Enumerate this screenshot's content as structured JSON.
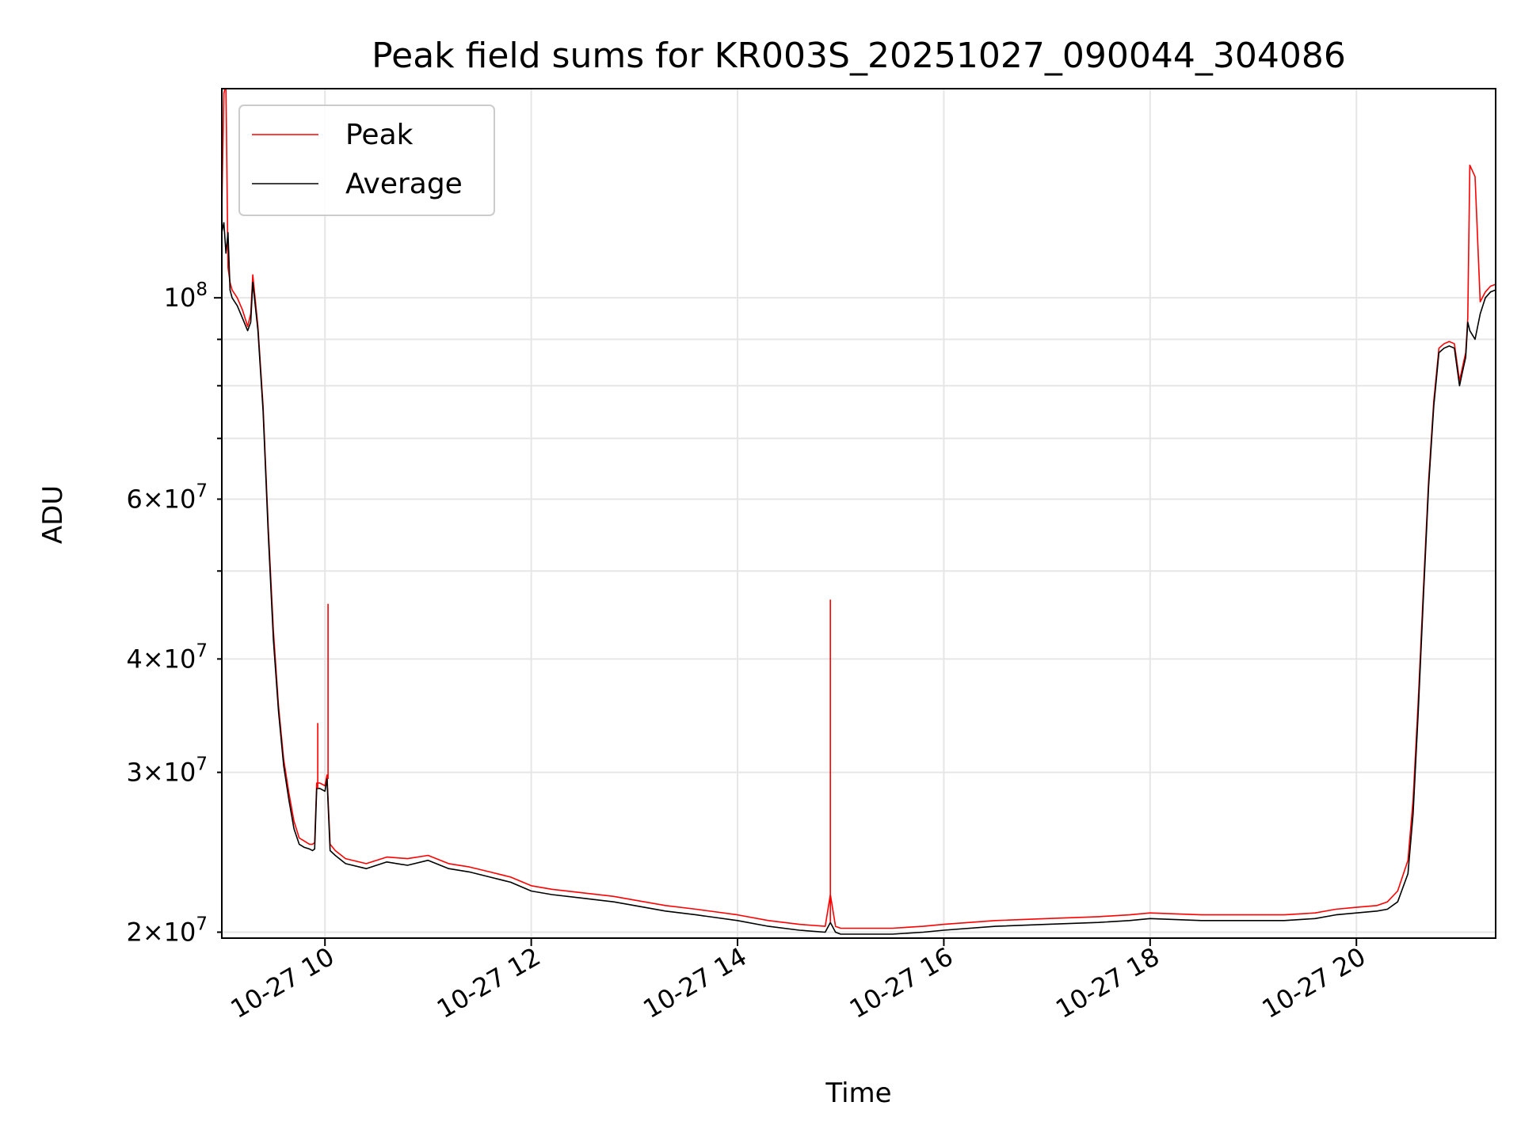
{
  "chart_data": {
    "type": "line",
    "title": "Peak field sums for KR003S_20251027_090044_304086",
    "xlabel": "Time",
    "ylabel": "ADU",
    "yscale": "log",
    "xlim": [
      9.0,
      21.35
    ],
    "ylim": [
      19700000,
      170000000
    ],
    "grid": true,
    "legend_position": "top-left",
    "x_ticks": [
      {
        "value": 10,
        "label": "10-27 10"
      },
      {
        "value": 12,
        "label": "10-27 12"
      },
      {
        "value": 14,
        "label": "10-27 14"
      },
      {
        "value": 16,
        "label": "10-27 16"
      },
      {
        "value": 18,
        "label": "10-27 18"
      },
      {
        "value": 20,
        "label": "10-27 20"
      }
    ],
    "y_ticks_major": [
      {
        "value": 100000000,
        "base": "10",
        "exp": "8"
      }
    ],
    "y_ticks_minor": [
      {
        "value": 20000000,
        "mant": "2",
        "base": "10",
        "exp": "7"
      },
      {
        "value": 30000000,
        "mant": "3",
        "base": "10",
        "exp": "7"
      },
      {
        "value": 40000000,
        "mant": "4",
        "base": "10",
        "exp": "7"
      },
      {
        "value": 60000000,
        "mant": "6",
        "base": "10",
        "exp": "7"
      }
    ],
    "y_minor_grid_extra": [
      50000000,
      70000000,
      80000000,
      90000000
    ],
    "series": [
      {
        "name": "Average",
        "color": "#000000",
        "x": [
          9.0,
          9.02,
          9.04,
          9.06,
          9.08,
          9.1,
          9.15,
          9.2,
          9.25,
          9.28,
          9.3,
          9.35,
          9.4,
          9.45,
          9.5,
          9.55,
          9.6,
          9.65,
          9.7,
          9.75,
          9.8,
          9.85,
          9.88,
          9.9,
          9.92,
          9.95,
          10.0,
          10.02,
          10.05,
          10.1,
          10.2,
          10.4,
          10.6,
          10.8,
          11.0,
          11.2,
          11.4,
          11.6,
          11.8,
          12.0,
          12.2,
          12.5,
          12.8,
          13.0,
          13.3,
          13.6,
          14.0,
          14.3,
          14.6,
          14.85,
          14.9,
          14.95,
          15.0,
          15.2,
          15.5,
          15.8,
          16.0,
          16.5,
          17.0,
          17.5,
          17.8,
          18.0,
          18.5,
          19.0,
          19.3,
          19.6,
          19.8,
          20.0,
          20.2,
          20.3,
          20.4,
          20.5,
          20.55,
          20.6,
          20.65,
          20.7,
          20.75,
          20.8,
          20.85,
          20.9,
          20.95,
          21.0,
          21.02,
          21.04,
          21.06,
          21.08,
          21.1,
          21.15,
          21.2,
          21.25,
          21.3,
          21.35
        ],
        "values": [
          118000000,
          121000000,
          112000000,
          118000000,
          102000000,
          100000000,
          98000000,
          95000000,
          92000000,
          94000000,
          104000000,
          92000000,
          75000000,
          55000000,
          42000000,
          35000000,
          30500000,
          28000000,
          26000000,
          25000000,
          24800000,
          24700000,
          24600000,
          24700000,
          28800000,
          28800000,
          28600000,
          29500000,
          24600000,
          24300000,
          23800000,
          23500000,
          23900000,
          23700000,
          24000000,
          23500000,
          23300000,
          23000000,
          22700000,
          22200000,
          22000000,
          21800000,
          21600000,
          21400000,
          21100000,
          20900000,
          20600000,
          20300000,
          20100000,
          20000000,
          20500000,
          20000000,
          19900000,
          19900000,
          19900000,
          20000000,
          20100000,
          20300000,
          20400000,
          20500000,
          20600000,
          20700000,
          20600000,
          20600000,
          20600000,
          20700000,
          20900000,
          21000000,
          21100000,
          21200000,
          21600000,
          23200000,
          27000000,
          35000000,
          47000000,
          62000000,
          76000000,
          87000000,
          88000000,
          88500000,
          88000000,
          80000000,
          82000000,
          84000000,
          86000000,
          94000000,
          92000000,
          90000000,
          96000000,
          100000000,
          101500000,
          102000000
        ]
      },
      {
        "name": "Peak",
        "color": "#ff0000",
        "x": [
          9.0,
          9.02,
          9.04,
          9.06,
          9.08,
          9.1,
          9.15,
          9.2,
          9.25,
          9.28,
          9.3,
          9.35,
          9.4,
          9.45,
          9.5,
          9.55,
          9.6,
          9.65,
          9.7,
          9.75,
          9.8,
          9.85,
          9.88,
          9.9,
          9.92,
          9.95,
          10.0,
          10.02,
          10.05,
          10.1,
          10.2,
          10.4,
          10.6,
          10.8,
          11.0,
          11.2,
          11.4,
          11.6,
          11.8,
          12.0,
          12.2,
          12.5,
          12.8,
          13.0,
          13.3,
          13.6,
          14.0,
          14.3,
          14.6,
          14.85,
          14.9,
          14.95,
          15.0,
          15.2,
          15.5,
          15.8,
          16.0,
          16.5,
          17.0,
          17.5,
          17.8,
          18.0,
          18.5,
          19.0,
          19.3,
          19.6,
          19.8,
          20.0,
          20.2,
          20.3,
          20.4,
          20.5,
          20.55,
          20.6,
          20.65,
          20.7,
          20.75,
          20.8,
          20.85,
          20.9,
          20.95,
          21.0,
          21.02,
          21.04,
          21.06,
          21.08,
          21.1,
          21.15,
          21.2,
          21.25,
          21.3,
          21.35
        ],
        "values": [
          125000000,
          168000000,
          172000000,
          108000000,
          104000000,
          102000000,
          100000000,
          97000000,
          93000000,
          96000000,
          106000000,
          93000000,
          76000000,
          56000000,
          43000000,
          35500000,
          31000000,
          28500000,
          26500000,
          25400000,
          25200000,
          25000000,
          25000000,
          25100000,
          29200000,
          29200000,
          29000000,
          29800000,
          25000000,
          24600000,
          24100000,
          23800000,
          24200000,
          24100000,
          24300000,
          23800000,
          23600000,
          23300000,
          23000000,
          22500000,
          22300000,
          22100000,
          21900000,
          21700000,
          21400000,
          21200000,
          20900000,
          20600000,
          20400000,
          20300000,
          22000000,
          20300000,
          20200000,
          20200000,
          20200000,
          20300000,
          20400000,
          20600000,
          20700000,
          20800000,
          20900000,
          21000000,
          20900000,
          20900000,
          20900000,
          21000000,
          21200000,
          21300000,
          21400000,
          21600000,
          22200000,
          24000000,
          28000000,
          36000000,
          48000000,
          63000000,
          77000000,
          88000000,
          89000000,
          89500000,
          89000000,
          81000000,
          83000000,
          85000000,
          87000000,
          95000000,
          140000000,
          136000000,
          99000000,
          101500000,
          103000000,
          103500000
        ]
      }
    ],
    "spikes": {
      "color": "#ff0000",
      "x": [
        9.93,
        10.03,
        14.9
      ],
      "values": [
        34000000,
        46000000,
        46500000
      ]
    }
  }
}
